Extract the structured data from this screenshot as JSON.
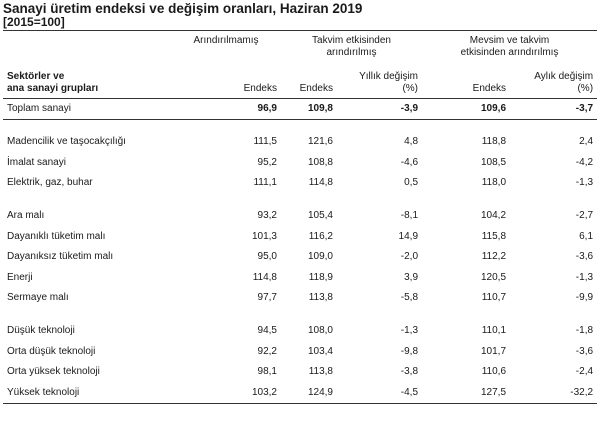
{
  "title": "Sanayi üretim endeksi ve değişim oranları, Haziran 2019",
  "subtitle": "[2015=100]",
  "header": {
    "groups": {
      "unadjusted": "Arındırılmamış",
      "calendar_line1": "Takvim etkisinden",
      "calendar_line2": "arındırılmış",
      "seasonal_line1": "Mevsim ve takvim",
      "seasonal_line2": "etkisinden arındırılmış"
    },
    "sector_line1": "Sektörler ve",
    "sector_line2": "ana sanayi grupları",
    "cols": {
      "index1": "Endeks",
      "index2": "Endeks",
      "annual_line1": "Yıllık değişim",
      "annual_line2": "(%)",
      "index3": "Endeks",
      "monthly_line1": "Aylık değişim",
      "monthly_line2": "(%)"
    }
  },
  "total": {
    "name": "Toplam sanayi",
    "v": [
      "96,9",
      "109,8",
      "-3,9",
      "109,6",
      "-3,7"
    ]
  },
  "groups": [
    [
      {
        "name": "Madencilik ve taşocakçılığı",
        "v": [
          "111,5",
          "121,6",
          "4,8",
          "118,8",
          "2,4"
        ]
      },
      {
        "name": "İmalat sanayi",
        "v": [
          "95,2",
          "108,8",
          "-4,6",
          "108,5",
          "-4,2"
        ]
      },
      {
        "name": "Elektrik, gaz, buhar",
        "v": [
          "111,1",
          "114,8",
          "0,5",
          "118,0",
          "-1,3"
        ]
      }
    ],
    [
      {
        "name": "Ara malı",
        "v": [
          "93,2",
          "105,4",
          "-8,1",
          "104,2",
          "-2,7"
        ]
      },
      {
        "name": "Dayanıklı tüketim malı",
        "v": [
          "101,3",
          "116,2",
          "14,9",
          "115,8",
          "6,1"
        ]
      },
      {
        "name": "Dayanıksız tüketim malı",
        "v": [
          "95,0",
          "109,0",
          "-2,0",
          "112,2",
          "-3,6"
        ]
      },
      {
        "name": "Enerji",
        "v": [
          "114,8",
          "118,9",
          "3,9",
          "120,5",
          "-1,3"
        ]
      },
      {
        "name": "Sermaye malı",
        "v": [
          "97,7",
          "113,8",
          "-5,8",
          "110,7",
          "-9,9"
        ]
      }
    ],
    [
      {
        "name": "Düşük teknoloji",
        "v": [
          "94,5",
          "108,0",
          "-1,3",
          "110,1",
          "-1,8"
        ]
      },
      {
        "name": "Orta düşük teknoloji",
        "v": [
          "92,2",
          "103,4",
          "-9,8",
          "101,7",
          "-3,6"
        ]
      },
      {
        "name": "Orta yüksek teknoloji",
        "v": [
          "98,1",
          "113,8",
          "-3,8",
          "110,6",
          "-2,4"
        ]
      },
      {
        "name": "Yüksek teknoloji",
        "v": [
          "103,2",
          "124,9",
          "-4,5",
          "127,5",
          "-32,2"
        ]
      }
    ]
  ]
}
